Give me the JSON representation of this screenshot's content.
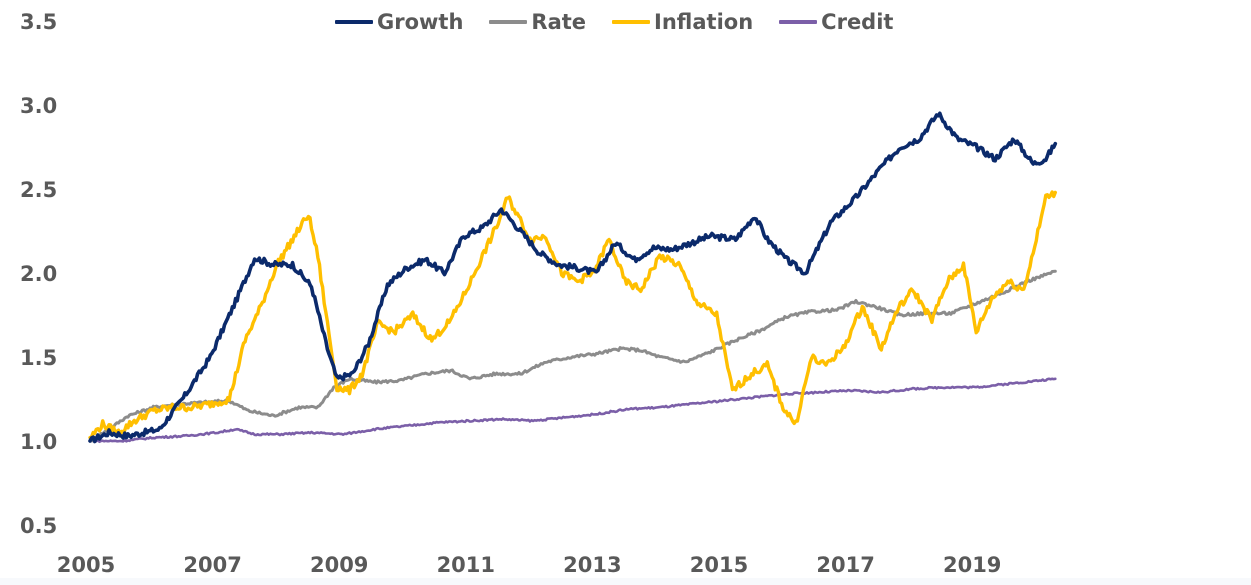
{
  "chart_data": {
    "type": "line",
    "title": "",
    "xlabel": "",
    "ylabel": "",
    "xlim": [
      2005,
      2020.3
    ],
    "ylim": [
      0.5,
      3.5
    ],
    "y_ticks": [
      "0.5",
      "1.0",
      "1.5",
      "2.0",
      "2.5",
      "3.0",
      "3.5"
    ],
    "y_tick_values": [
      0.5,
      1.0,
      1.5,
      2.0,
      2.5,
      3.0,
      3.5
    ],
    "x_ticks": [
      "2005",
      "2007",
      "2009",
      "2011",
      "2013",
      "2015",
      "2017",
      "2019"
    ],
    "x_tick_values": [
      2005,
      2007,
      2009,
      2011,
      2013,
      2015,
      2017,
      2019
    ],
    "grid": false,
    "legend_position": "top-center",
    "series": [
      {
        "name": "Growth",
        "color": "#0b2a6b",
        "x": [
          2005.0,
          2005.3,
          2005.6,
          2006.1,
          2006.5,
          2006.9,
          2007.3,
          2007.6,
          2007.9,
          2008.2,
          2008.5,
          2008.75,
          2008.9,
          2009.15,
          2009.4,
          2009.7,
          2010.0,
          2010.3,
          2010.6,
          2010.9,
          2011.2,
          2011.5,
          2011.8,
          2012.1,
          2012.4,
          2012.7,
          2013.0,
          2013.3,
          2013.6,
          2013.9,
          2014.2,
          2014.5,
          2014.8,
          2015.2,
          2015.5,
          2015.7,
          2016.0,
          2016.3,
          2016.7,
          2017.1,
          2017.5,
          2017.8,
          2018.1,
          2018.4,
          2018.7,
          2019.0,
          2019.3,
          2019.6,
          2019.9,
          2020.1,
          2020.25
        ],
        "values": [
          1.0,
          1.05,
          1.03,
          1.07,
          1.27,
          1.5,
          1.83,
          2.09,
          2.05,
          2.05,
          1.92,
          1.55,
          1.37,
          1.4,
          1.58,
          1.93,
          2.03,
          2.08,
          2.0,
          2.22,
          2.27,
          2.38,
          2.25,
          2.12,
          2.05,
          2.03,
          2.0,
          2.18,
          2.08,
          2.15,
          2.14,
          2.18,
          2.22,
          2.2,
          2.34,
          2.2,
          2.08,
          2.0,
          2.3,
          2.45,
          2.63,
          2.75,
          2.8,
          2.95,
          2.8,
          2.75,
          2.68,
          2.8,
          2.65,
          2.68,
          2.77
        ]
      },
      {
        "name": "Rate",
        "color": "#8c8c8c",
        "x": [
          2005.0,
          2005.3,
          2005.6,
          2006.0,
          2006.4,
          2006.8,
          2007.2,
          2007.5,
          2007.9,
          2008.3,
          2008.6,
          2008.85,
          2009.1,
          2009.5,
          2009.9,
          2010.3,
          2010.7,
          2011.0,
          2011.4,
          2011.8,
          2012.2,
          2012.6,
          2013.0,
          2013.4,
          2013.7,
          2014.0,
          2014.4,
          2014.8,
          2015.2,
          2015.6,
          2016.0,
          2016.4,
          2016.8,
          2017.1,
          2017.4,
          2017.8,
          2018.2,
          2018.6,
          2019.0,
          2019.4,
          2019.8,
          2020.25
        ],
        "values": [
          1.0,
          1.07,
          1.15,
          1.2,
          1.22,
          1.23,
          1.24,
          1.18,
          1.15,
          1.2,
          1.2,
          1.32,
          1.37,
          1.35,
          1.36,
          1.4,
          1.42,
          1.37,
          1.4,
          1.4,
          1.47,
          1.5,
          1.52,
          1.55,
          1.54,
          1.5,
          1.47,
          1.53,
          1.6,
          1.66,
          1.74,
          1.77,
          1.78,
          1.83,
          1.8,
          1.75,
          1.76,
          1.76,
          1.82,
          1.88,
          1.95,
          2.01
        ]
      },
      {
        "name": "Inflation",
        "color": "#ffbf00",
        "x": [
          2005.0,
          2005.2,
          2005.45,
          2005.7,
          2006.0,
          2006.3,
          2006.6,
          2006.9,
          2007.2,
          2007.45,
          2007.7,
          2007.95,
          2008.2,
          2008.45,
          2008.6,
          2008.75,
          2008.9,
          2009.1,
          2009.3,
          2009.55,
          2009.8,
          2010.1,
          2010.4,
          2010.7,
          2010.95,
          2011.2,
          2011.45,
          2011.6,
          2011.75,
          2011.95,
          2012.2,
          2012.45,
          2012.7,
          2012.95,
          2013.2,
          2013.45,
          2013.7,
          2014.0,
          2014.3,
          2014.6,
          2014.9,
          2015.15,
          2015.45,
          2015.7,
          2015.95,
          2016.15,
          2016.4,
          2016.6,
          2016.9,
          2017.2,
          2017.5,
          2017.75,
          2018.0,
          2018.3,
          2018.55,
          2018.8,
          2019.0,
          2019.25,
          2019.5,
          2019.75,
          2019.95,
          2020.1,
          2020.25
        ],
        "values": [
          1.02,
          1.1,
          1.05,
          1.12,
          1.18,
          1.2,
          1.2,
          1.22,
          1.25,
          1.6,
          1.8,
          2.05,
          2.2,
          2.35,
          2.1,
          1.7,
          1.32,
          1.3,
          1.4,
          1.7,
          1.65,
          1.75,
          1.6,
          1.72,
          1.9,
          2.1,
          2.3,
          2.45,
          2.35,
          2.2,
          2.22,
          2.0,
          1.95,
          2.0,
          2.2,
          1.95,
          1.9,
          2.1,
          2.05,
          1.82,
          1.75,
          1.3,
          1.4,
          1.45,
          1.2,
          1.1,
          1.5,
          1.45,
          1.55,
          1.8,
          1.55,
          1.78,
          1.9,
          1.72,
          1.95,
          2.05,
          1.65,
          1.85,
          1.95,
          1.9,
          2.2,
          2.45,
          2.48
        ]
      },
      {
        "name": "Credit",
        "color": "#7b5fa8",
        "x": [
          2005.0,
          2005.5,
          2006.0,
          2006.5,
          2007.0,
          2007.3,
          2007.6,
          2008.0,
          2008.5,
          2009.0,
          2009.5,
          2010.0,
          2010.5,
          2011.0,
          2011.5,
          2012.0,
          2012.5,
          2013.0,
          2013.5,
          2014.0,
          2014.5,
          2015.0,
          2015.5,
          2016.0,
          2016.5,
          2017.0,
          2017.5,
          2018.0,
          2018.5,
          2019.0,
          2019.5,
          2020.0,
          2020.25
        ],
        "values": [
          1.0,
          1.0,
          1.02,
          1.03,
          1.05,
          1.07,
          1.04,
          1.04,
          1.05,
          1.04,
          1.07,
          1.09,
          1.11,
          1.12,
          1.13,
          1.12,
          1.14,
          1.16,
          1.19,
          1.2,
          1.22,
          1.24,
          1.26,
          1.28,
          1.29,
          1.3,
          1.29,
          1.31,
          1.32,
          1.32,
          1.34,
          1.36,
          1.37
        ]
      }
    ]
  }
}
